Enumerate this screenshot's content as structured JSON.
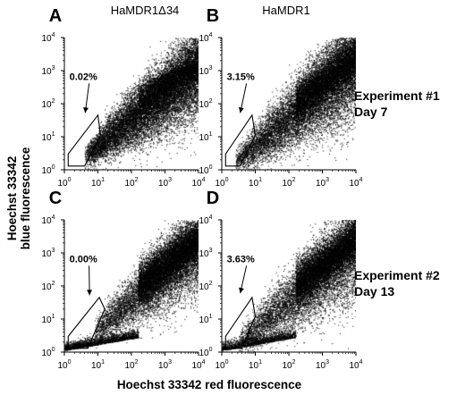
{
  "figure": {
    "column_titles": [
      "HaMDR1Δ34",
      "HaMDR1"
    ],
    "x_axis_label": "Hoechst 33342 red fluorescence",
    "y_axis_label_line1": "Hoechst 33342",
    "y_axis_label_line2": "blue fluorescence",
    "experiments": [
      {
        "line1": "Experiment #1",
        "line2": "Day 7"
      },
      {
        "line1": "Experiment #2",
        "line2": "Day 13"
      }
    ],
    "tick_base": "10",
    "tick_exponents": [
      "0",
      "1",
      "2",
      "3",
      "4"
    ]
  },
  "chart_data": [
    {
      "type": "scatter",
      "panel": "A",
      "column": "HaMDR1Δ34",
      "experiment": "Experiment #1 Day 7",
      "xscale": "log",
      "yscale": "log",
      "xlim": [
        1,
        10000
      ],
      "ylim": [
        1,
        10000
      ],
      "gate_label": "0.02%",
      "gate_polygon": [
        [
          1.3,
          1.3
        ],
        [
          4.0,
          1.3
        ],
        [
          12,
          11
        ],
        [
          10,
          45
        ],
        [
          1.3,
          3
        ]
      ],
      "density": {
        "main_upper_limit_decades": 2.7,
        "threshold_decades": 0.6,
        "upper_cluster": 0.15,
        "lower_tail": 0.0,
        "gated_fraction": 0.0002
      }
    },
    {
      "type": "scatter",
      "panel": "B",
      "column": "HaMDR1",
      "experiment": "Experiment #1 Day 7",
      "xscale": "log",
      "yscale": "log",
      "xlim": [
        1,
        10000
      ],
      "ylim": [
        1,
        10000
      ],
      "gate_label": "3.15%",
      "gate_polygon": [
        [
          1.3,
          1.3
        ],
        [
          3.5,
          1.3
        ],
        [
          10,
          11
        ],
        [
          8,
          45
        ],
        [
          1.3,
          3
        ]
      ],
      "density": {
        "main_upper_limit_decades": 3.6,
        "threshold_decades": 0.4,
        "upper_cluster": 0.35,
        "lower_tail": 0.0,
        "gated_fraction": 0.0315
      }
    },
    {
      "type": "scatter",
      "panel": "C",
      "column": "HaMDR1Δ34",
      "experiment": "Experiment #2 Day 13",
      "xscale": "log",
      "yscale": "log",
      "xlim": [
        1,
        10000
      ],
      "ylim": [
        1,
        10000
      ],
      "gate_label": "0.00%",
      "gate_polygon": [
        [
          1.3,
          1.3
        ],
        [
          5,
          1.3
        ],
        [
          16,
          20
        ],
        [
          11,
          45
        ],
        [
          1.3,
          3
        ]
      ],
      "density": {
        "main_upper_limit_decades": 3.8,
        "threshold_decades": 0.9,
        "upper_cluster": 0.45,
        "lower_tail": 0.12,
        "gated_fraction": 0.0
      }
    },
    {
      "type": "scatter",
      "panel": "D",
      "column": "HaMDR1",
      "experiment": "Experiment #2 Day 13",
      "xscale": "log",
      "yscale": "log",
      "xlim": [
        1,
        10000
      ],
      "ylim": [
        1,
        10000
      ],
      "gate_label": "3.63%",
      "gate_polygon": [
        [
          1.3,
          1.3
        ],
        [
          4,
          1.3
        ],
        [
          10,
          12
        ],
        [
          8,
          45
        ],
        [
          1.3,
          3
        ]
      ],
      "density": {
        "main_upper_limit_decades": 3.8,
        "threshold_decades": 0.5,
        "upper_cluster": 0.45,
        "lower_tail": 0.1,
        "gated_fraction": 0.0363
      }
    }
  ]
}
